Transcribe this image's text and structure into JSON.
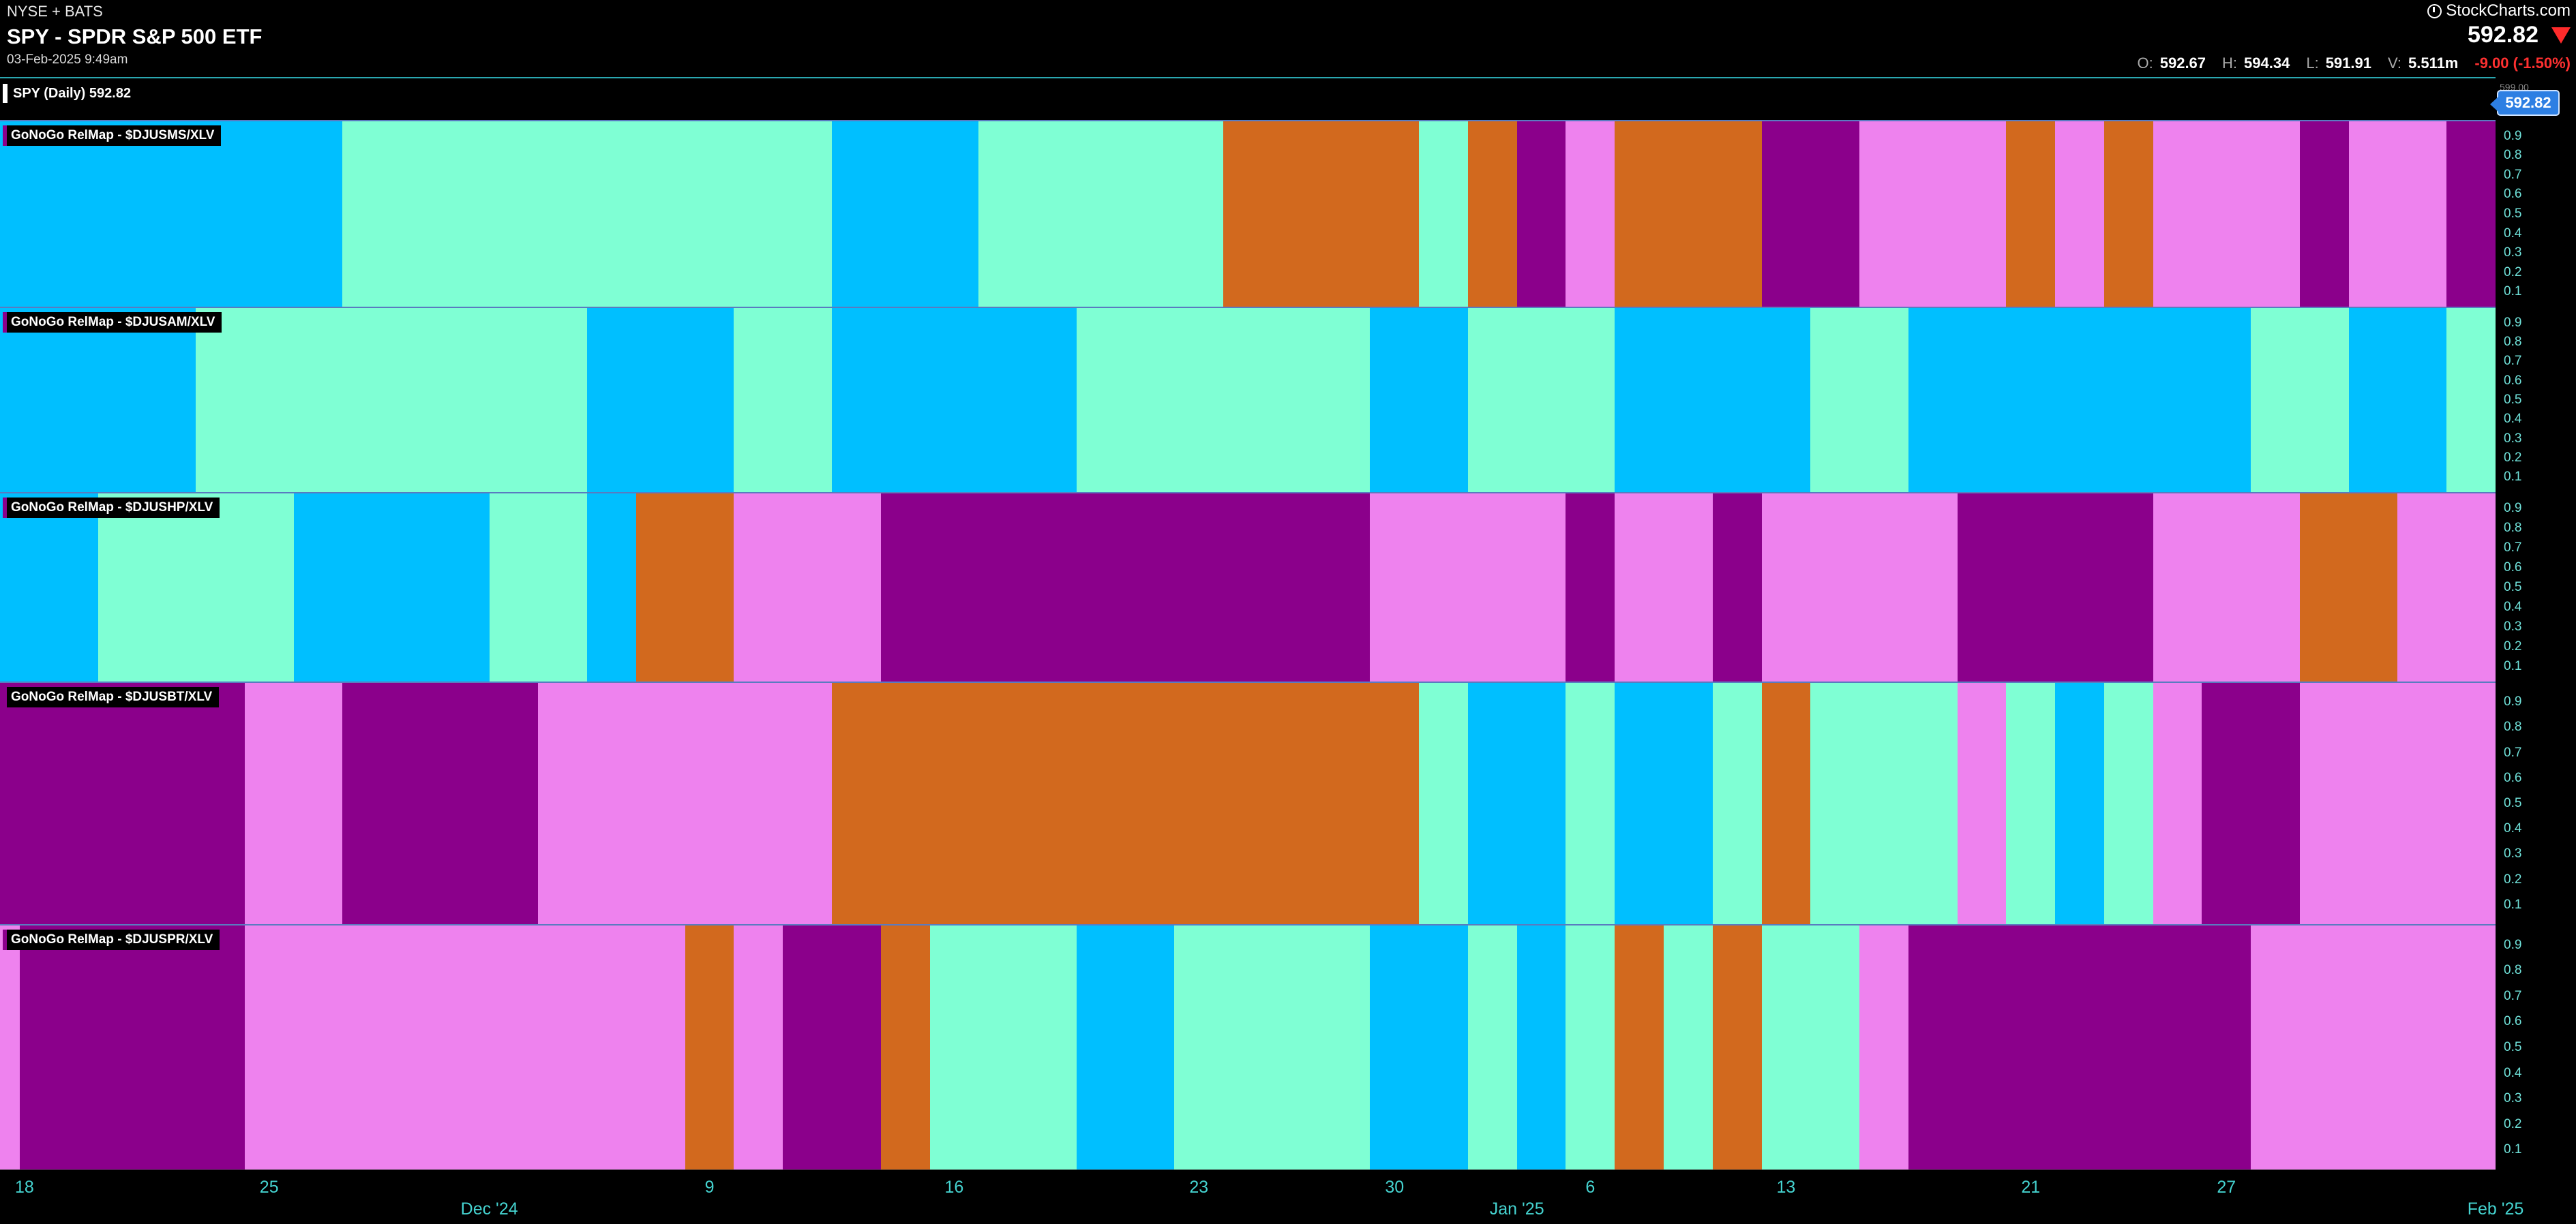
{
  "header": {
    "exchange": "NYSE + BATS",
    "title": "SPY - SPDR S&P 500 ETF",
    "timestamp": "03-Feb-2025 9:49am",
    "brand": "StockCharts.com",
    "last_price": "592.82",
    "ohlc": {
      "o_label": "O:",
      "o": "592.67",
      "h_label": "H:",
      "h": "594.34",
      "l_label": "L:",
      "l": "591.91",
      "v_label": "V:",
      "v": "5.511m"
    },
    "change": "-9.00 (-1.50%)",
    "price_arrow_icon": "down-triangle-icon"
  },
  "price_panel": {
    "label": "SPY (Daily) 592.82",
    "price_tag": "592.82",
    "price_tag_ghost": "599.00"
  },
  "colors": {
    "cyan": "#00bfff",
    "aqua": "#7fffd4",
    "orange": "#d2691e",
    "purple": "#8b008b",
    "pink": "#ee82ee"
  },
  "chart_data": {
    "type": "heatmap",
    "x_dates": [
      "2024-11-18",
      "2024-11-19",
      "2024-11-20",
      "2024-11-21",
      "2024-11-22",
      "2024-11-25",
      "2024-11-26",
      "2024-11-27",
      "2024-11-29",
      "2024-12-02",
      "2024-12-03",
      "2024-12-04",
      "2024-12-05",
      "2024-12-06",
      "2024-12-09",
      "2024-12-10",
      "2024-12-11",
      "2024-12-12",
      "2024-12-13",
      "2024-12-16",
      "2024-12-17",
      "2024-12-18",
      "2024-12-19",
      "2024-12-20",
      "2024-12-23",
      "2024-12-24",
      "2024-12-26",
      "2024-12-27",
      "2024-12-30",
      "2024-12-31",
      "2025-01-02",
      "2025-01-03",
      "2025-01-06",
      "2025-01-07",
      "2025-01-08",
      "2025-01-10",
      "2025-01-13",
      "2025-01-14",
      "2025-01-15",
      "2025-01-16",
      "2025-01-17",
      "2025-01-21",
      "2025-01-22",
      "2025-01-23",
      "2025-01-24",
      "2025-01-27",
      "2025-01-28",
      "2025-01-29",
      "2025-01-30",
      "2025-01-31",
      "2025-02-03"
    ],
    "x_axis": {
      "day_ticks": [
        {
          "label": "18",
          "index": 0
        },
        {
          "label": "25",
          "index": 5
        },
        {
          "label": "9",
          "index": 14
        },
        {
          "label": "16",
          "index": 19
        },
        {
          "label": "23",
          "index": 24
        },
        {
          "label": "30",
          "index": 28
        },
        {
          "label": "6",
          "index": 32
        },
        {
          "label": "13",
          "index": 36
        },
        {
          "label": "21",
          "index": 41
        },
        {
          "label": "27",
          "index": 45
        }
      ],
      "month_ticks": [
        {
          "label": "Dec '24",
          "index": 9.5
        },
        {
          "label": "Jan '25",
          "index": 30.5
        },
        {
          "label": "Feb '25",
          "index": 50.5
        }
      ]
    },
    "y_ticks": [
      "0.9",
      "0.8",
      "0.7",
      "0.6",
      "0.5",
      "0.4",
      "0.3",
      "0.2",
      "0.1"
    ],
    "panels": [
      {
        "name": "GoNoGo RelMap - $DJUSMS/XLV",
        "segments": [
          [
            "cyan",
            0,
            7
          ],
          [
            "aqua",
            7,
            17
          ],
          [
            "cyan",
            17,
            20
          ],
          [
            "aqua",
            20,
            25
          ],
          [
            "orange",
            25,
            29
          ],
          [
            "aqua",
            29,
            30
          ],
          [
            "orange",
            30,
            31
          ],
          [
            "purple",
            31,
            32
          ],
          [
            "pink",
            32,
            33
          ],
          [
            "orange",
            33,
            36
          ],
          [
            "purple",
            36,
            38
          ],
          [
            "pink",
            38,
            41
          ],
          [
            "orange",
            41,
            42
          ],
          [
            "pink",
            42,
            43
          ],
          [
            "orange",
            43,
            44
          ],
          [
            "pink",
            44,
            47
          ],
          [
            "purple",
            47,
            48
          ],
          [
            "pink",
            48,
            50
          ],
          [
            "purple",
            50,
            51
          ]
        ]
      },
      {
        "name": "GoNoGo RelMap - $DJUSAM/XLV",
        "segments": [
          [
            "cyan",
            0,
            4
          ],
          [
            "aqua",
            4,
            12
          ],
          [
            "cyan",
            12,
            15
          ],
          [
            "aqua",
            15,
            17
          ],
          [
            "cyan",
            17,
            22
          ],
          [
            "aqua",
            22,
            28
          ],
          [
            "cyan",
            28,
            30
          ],
          [
            "aqua",
            30,
            33
          ],
          [
            "cyan",
            33,
            37
          ],
          [
            "aqua",
            37,
            39
          ],
          [
            "cyan",
            39,
            46
          ],
          [
            "aqua",
            46,
            48
          ],
          [
            "cyan",
            48,
            50
          ],
          [
            "aqua",
            50,
            51
          ]
        ]
      },
      {
        "name": "GoNoGo RelMap - $DJUSHP/XLV",
        "segments": [
          [
            "cyan",
            0,
            2
          ],
          [
            "aqua",
            2,
            6
          ],
          [
            "cyan",
            6,
            10
          ],
          [
            "aqua",
            10,
            12
          ],
          [
            "cyan",
            12,
            13
          ],
          [
            "orange",
            13,
            15
          ],
          [
            "pink",
            15,
            18
          ],
          [
            "purple",
            18,
            28
          ],
          [
            "pink",
            28,
            32
          ],
          [
            "purple",
            32,
            33
          ],
          [
            "pink",
            33,
            35
          ],
          [
            "purple",
            35,
            36
          ],
          [
            "pink",
            36,
            40
          ],
          [
            "purple",
            40,
            44
          ],
          [
            "pink",
            44,
            47
          ],
          [
            "orange",
            47,
            49
          ],
          [
            "pink",
            49,
            51
          ]
        ]
      },
      {
        "name": "GoNoGo RelMap - $DJUSBT/XLV",
        "segments": [
          [
            "purple",
            0,
            5
          ],
          [
            "pink",
            5,
            7
          ],
          [
            "purple",
            7,
            11
          ],
          [
            "pink",
            11,
            17
          ],
          [
            "orange",
            17,
            29
          ],
          [
            "aqua",
            29,
            30
          ],
          [
            "cyan",
            30,
            32
          ],
          [
            "aqua",
            32,
            33
          ],
          [
            "cyan",
            33,
            35
          ],
          [
            "aqua",
            35,
            36
          ],
          [
            "orange",
            36,
            37
          ],
          [
            "aqua",
            37,
            40
          ],
          [
            "pink",
            40,
            41
          ],
          [
            "aqua",
            41,
            42
          ],
          [
            "cyan",
            42,
            43
          ],
          [
            "aqua",
            43,
            44
          ],
          [
            "pink",
            44,
            45
          ],
          [
            "purple",
            45,
            47
          ],
          [
            "pink",
            47,
            51
          ]
        ]
      },
      {
        "name": "GoNoGo RelMap - $DJUSPR/XLV",
        "segments": [
          [
            "pink",
            0,
            0.4
          ],
          [
            "purple",
            0.4,
            5
          ],
          [
            "pink",
            5,
            14
          ],
          [
            "orange",
            14,
            15
          ],
          [
            "pink",
            15,
            16
          ],
          [
            "purple",
            16,
            18
          ],
          [
            "orange",
            18,
            19
          ],
          [
            "aqua",
            19,
            22
          ],
          [
            "cyan",
            22,
            24
          ],
          [
            "aqua",
            24,
            28
          ],
          [
            "cyan",
            28,
            30
          ],
          [
            "aqua",
            30,
            31
          ],
          [
            "cyan",
            31,
            32
          ],
          [
            "aqua",
            32,
            33
          ],
          [
            "orange",
            33,
            34
          ],
          [
            "aqua",
            34,
            35
          ],
          [
            "orange",
            35,
            36
          ],
          [
            "aqua",
            36,
            38
          ],
          [
            "pink",
            38,
            39
          ],
          [
            "purple",
            39,
            46
          ],
          [
            "pink",
            46,
            51
          ]
        ]
      }
    ]
  }
}
